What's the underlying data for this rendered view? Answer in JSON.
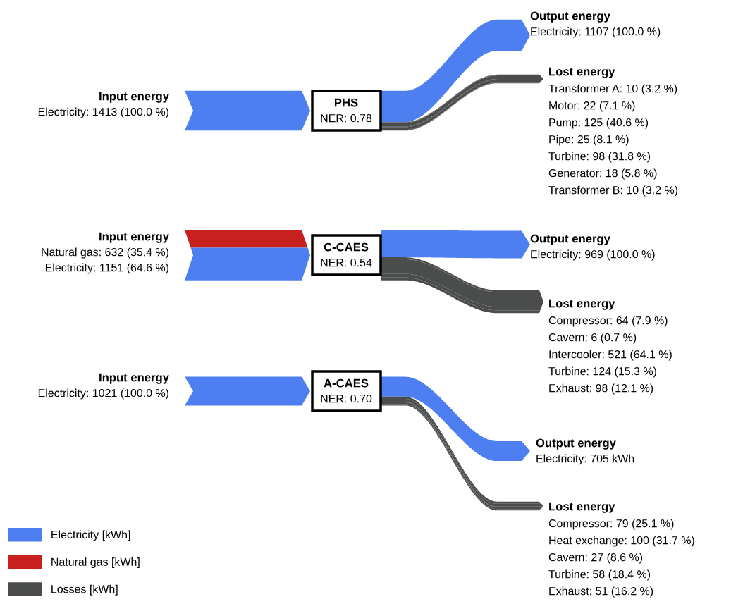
{
  "chart_data": [
    {
      "type": "other",
      "title": "PHS",
      "subtitle": "NER: 0.78",
      "categories": [
        "Input energy",
        "Output energy",
        "Lost energy"
      ],
      "series": [
        {
          "color": "#4e7ff0",
          "values": [
            1413,
            1107,
            null
          ],
          "value_labels": [
            "Electricity: 1413 (100.0 %)",
            "Electricity: 1107 (100.0 %)",
            null
          ]
        },
        {
          "color": "#4b4d4c",
          "values": [
            null,
            null,
            10
          ],
          "value_labels": [
            null,
            null,
            "Transformer A: 10 (3.2 %)"
          ]
        },
        {
          "color": "#4b4d4c",
          "values": [
            null,
            null,
            22
          ],
          "value_labels": [
            null,
            null,
            "Motor: 22 (7.1 %)"
          ]
        },
        {
          "color": "#4b4d4c",
          "values": [
            null,
            null,
            125
          ],
          "value_labels": [
            null,
            null,
            "Pump: 125 (40.6 %)"
          ]
        },
        {
          "color": "#4b4d4c",
          "values": [
            null,
            null,
            25
          ],
          "value_labels": [
            null,
            null,
            "Pipe: 25 (8.1 %)"
          ]
        },
        {
          "color": "#4b4d4c",
          "values": [
            null,
            null,
            98
          ],
          "value_labels": [
            null,
            null,
            "Turbine: 98 (31.8 %)"
          ]
        },
        {
          "color": "#4b4d4c",
          "values": [
            null,
            null,
            18
          ],
          "value_labels": [
            null,
            null,
            "Generator: 18 (5.8 %)"
          ]
        },
        {
          "color": "#4b4d4c",
          "values": [
            null,
            null,
            10
          ],
          "value_labels": [
            null,
            null,
            "Transformer B: 10 (3.2 %)"
          ]
        }
      ]
    },
    {
      "type": "other",
      "title": "C-CAES",
      "subtitle": "NER: 0.54",
      "categories": [
        "Input energy",
        "Output energy",
        "Lost energy"
      ],
      "series": [
        {
          "color": "#c8201e",
          "values": [
            632,
            null,
            null
          ],
          "value_labels": [
            "Natural gas: 632 (35.4 %)",
            null,
            null
          ]
        },
        {
          "color": "#4e7ff0",
          "values": [
            1151,
            969,
            null
          ],
          "value_labels": [
            "Electricity: 1151 (64.6 %)",
            "Electricity: 969 (100.0 %)",
            null
          ]
        },
        {
          "color": "#4b4d4c",
          "values": [
            null,
            null,
            64
          ],
          "value_labels": [
            null,
            null,
            "Compressor: 64 (7.9 %)"
          ]
        },
        {
          "color": "#4b4d4c",
          "values": [
            null,
            null,
            6
          ],
          "value_labels": [
            null,
            null,
            "Cavern: 6 (0.7 %)"
          ]
        },
        {
          "color": "#4b4d4c",
          "values": [
            null,
            null,
            521
          ],
          "value_labels": [
            null,
            null,
            "Intercooler: 521 (64.1 %)"
          ]
        },
        {
          "color": "#4b4d4c",
          "values": [
            null,
            null,
            124
          ],
          "value_labels": [
            null,
            null,
            "Turbine: 124 (15.3 %)"
          ]
        },
        {
          "color": "#4b4d4c",
          "values": [
            null,
            null,
            98
          ],
          "value_labels": [
            null,
            null,
            "Exhaust: 98 (12.1 %)"
          ]
        }
      ]
    },
    {
      "type": "other",
      "title": "A-CAES",
      "subtitle": "NER: 0.70",
      "categories": [
        "Input energy",
        "Output energy",
        "Lost energy"
      ],
      "series": [
        {
          "color": "#4e7ff0",
          "values": [
            1021,
            705,
            null
          ],
          "value_labels": [
            "Electricity: 1021 (100.0 %)",
            "Electricity: 705 kWh",
            null
          ]
        },
        {
          "color": "#4b4d4c",
          "values": [
            null,
            null,
            79
          ],
          "value_labels": [
            null,
            null,
            "Compressor: 79 (25.1 %)"
          ]
        },
        {
          "color": "#4b4d4c",
          "values": [
            null,
            null,
            100
          ],
          "value_labels": [
            null,
            null,
            "Heat exchange: 100 (31.7 %)"
          ]
        },
        {
          "color": "#4b4d4c",
          "values": [
            null,
            null,
            27
          ],
          "value_labels": [
            null,
            null,
            "Cavern: 27 (8.6 %)"
          ]
        },
        {
          "color": "#4b4d4c",
          "values": [
            null,
            null,
            58
          ],
          "value_labels": [
            null,
            null,
            "Turbine: 58 (18.4 %)"
          ]
        },
        {
          "color": "#4b4d4c",
          "values": [
            null,
            null,
            51
          ],
          "value_labels": [
            null,
            null,
            "Exhaust: 51 (16.2 %)"
          ]
        }
      ]
    },
    {
      "type": "other",
      "legend": "lower left",
      "series": [
        {
          "name": "Electricity [kWh]",
          "color": "#4e7ff0"
        },
        {
          "name": "Natural gas [kWh]",
          "color": "#c8201e"
        },
        {
          "name": "Losses [kWh]",
          "color": "#4b4d4c"
        }
      ]
    }
  ]
}
